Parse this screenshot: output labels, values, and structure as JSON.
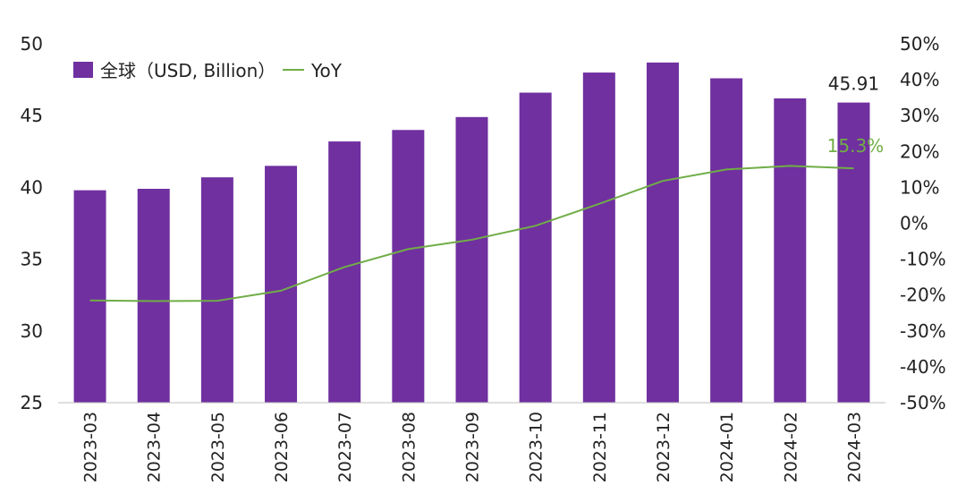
{
  "chart_data": {
    "type": "bar",
    "categories": [
      "2023-03",
      "2023-04",
      "2023-05",
      "2023-06",
      "2023-07",
      "2023-08",
      "2023-09",
      "2023-10",
      "2023-11",
      "2023-12",
      "2024-01",
      "2024-02",
      "2024-03"
    ],
    "series": [
      {
        "name": "全球（USD, Billion）",
        "type": "bar",
        "axis": "left",
        "color": "#7030a0",
        "values": [
          39.8,
          39.9,
          40.7,
          41.5,
          43.2,
          44.0,
          44.9,
          46.6,
          48.0,
          48.7,
          47.6,
          46.2,
          45.91
        ]
      },
      {
        "name": "YoY",
        "type": "line",
        "axis": "right",
        "color": "#70ad47",
        "values": [
          -21.5,
          -21.7,
          -21.6,
          -18.8,
          -12.2,
          -7.2,
          -4.6,
          -0.7,
          5.4,
          11.8,
          15.0,
          16.0,
          15.3
        ]
      }
    ],
    "y_left": {
      "ylim": [
        25,
        50
      ],
      "ticks": [
        "25",
        "30",
        "35",
        "40",
        "45",
        "50"
      ]
    },
    "y_right": {
      "ylim": [
        -50,
        50
      ],
      "ticks": [
        "-50%",
        "-40%",
        "-30%",
        "-20%",
        "-10%",
        "0%",
        "10%",
        "20%",
        "30%",
        "40%",
        "50%"
      ]
    },
    "annotations": {
      "bar_last_label": "45.91",
      "line_last_label": "15.3%"
    },
    "grid": false,
    "legend": "top-left"
  }
}
